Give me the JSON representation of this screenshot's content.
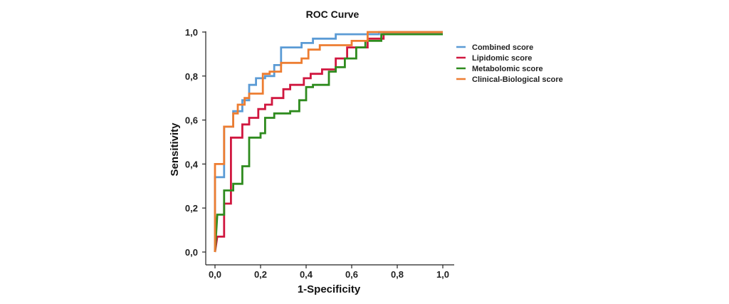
{
  "chart_data": {
    "type": "line",
    "title": "ROC Curve",
    "xlabel": "1-Specificity",
    "ylabel": "Sensitivity",
    "xlim": [
      0,
      1
    ],
    "ylim": [
      0,
      1
    ],
    "x_ticks": [
      "0,0",
      "0,2",
      "0,4",
      "0,6",
      "0,8",
      "1,0"
    ],
    "y_ticks": [
      "0,0",
      "0,2",
      "0,4",
      "0,6",
      "0,8",
      "1,0"
    ],
    "grid": false,
    "legend_position": "right",
    "series": [
      {
        "name": "Combined score",
        "color": "#5b9bd5",
        "points": [
          [
            0,
            0
          ],
          [
            0,
            0.34
          ],
          [
            0.04,
            0.34
          ],
          [
            0.04,
            0.57
          ],
          [
            0.08,
            0.57
          ],
          [
            0.08,
            0.64
          ],
          [
            0.12,
            0.64
          ],
          [
            0.12,
            0.69
          ],
          [
            0.15,
            0.69
          ],
          [
            0.15,
            0.76
          ],
          [
            0.18,
            0.76
          ],
          [
            0.18,
            0.79
          ],
          [
            0.22,
            0.79
          ],
          [
            0.22,
            0.8
          ],
          [
            0.26,
            0.8
          ],
          [
            0.26,
            0.85
          ],
          [
            0.29,
            0.85
          ],
          [
            0.29,
            0.93
          ],
          [
            0.38,
            0.93
          ],
          [
            0.38,
            0.95
          ],
          [
            0.43,
            0.95
          ],
          [
            0.43,
            0.97
          ],
          [
            0.53,
            0.97
          ],
          [
            0.53,
            0.99
          ],
          [
            0.72,
            0.99
          ],
          [
            0.72,
            1.0
          ],
          [
            1.0,
            1.0
          ]
        ]
      },
      {
        "name": "Lipidomic score",
        "color": "#d0173f",
        "points": [
          [
            0,
            0
          ],
          [
            0.01,
            0.07
          ],
          [
            0.04,
            0.07
          ],
          [
            0.04,
            0.22
          ],
          [
            0.07,
            0.22
          ],
          [
            0.07,
            0.52
          ],
          [
            0.12,
            0.52
          ],
          [
            0.12,
            0.58
          ],
          [
            0.15,
            0.58
          ],
          [
            0.15,
            0.61
          ],
          [
            0.19,
            0.61
          ],
          [
            0.19,
            0.65
          ],
          [
            0.22,
            0.65
          ],
          [
            0.22,
            0.67
          ],
          [
            0.25,
            0.67
          ],
          [
            0.25,
            0.7
          ],
          [
            0.3,
            0.7
          ],
          [
            0.3,
            0.74
          ],
          [
            0.33,
            0.74
          ],
          [
            0.33,
            0.76
          ],
          [
            0.39,
            0.76
          ],
          [
            0.39,
            0.79
          ],
          [
            0.42,
            0.79
          ],
          [
            0.42,
            0.81
          ],
          [
            0.47,
            0.81
          ],
          [
            0.47,
            0.83
          ],
          [
            0.53,
            0.83
          ],
          [
            0.53,
            0.88
          ],
          [
            0.58,
            0.88
          ],
          [
            0.58,
            0.93
          ],
          [
            0.67,
            0.93
          ],
          [
            0.67,
            0.97
          ],
          [
            0.74,
            0.97
          ],
          [
            0.74,
            0.99
          ],
          [
            1.0,
            0.99
          ]
        ]
      },
      {
        "name": "Metabolomic score",
        "color": "#2e8b1e",
        "points": [
          [
            0,
            0
          ],
          [
            0.01,
            0.17
          ],
          [
            0.04,
            0.17
          ],
          [
            0.04,
            0.28
          ],
          [
            0.08,
            0.28
          ],
          [
            0.08,
            0.31
          ],
          [
            0.12,
            0.31
          ],
          [
            0.12,
            0.39
          ],
          [
            0.15,
            0.39
          ],
          [
            0.15,
            0.52
          ],
          [
            0.2,
            0.52
          ],
          [
            0.2,
            0.54
          ],
          [
            0.22,
            0.54
          ],
          [
            0.22,
            0.61
          ],
          [
            0.26,
            0.61
          ],
          [
            0.26,
            0.63
          ],
          [
            0.33,
            0.63
          ],
          [
            0.33,
            0.64
          ],
          [
            0.37,
            0.64
          ],
          [
            0.37,
            0.69
          ],
          [
            0.4,
            0.69
          ],
          [
            0.4,
            0.75
          ],
          [
            0.43,
            0.75
          ],
          [
            0.43,
            0.76
          ],
          [
            0.5,
            0.76
          ],
          [
            0.5,
            0.82
          ],
          [
            0.53,
            0.82
          ],
          [
            0.53,
            0.84
          ],
          [
            0.57,
            0.84
          ],
          [
            0.57,
            0.88
          ],
          [
            0.62,
            0.88
          ],
          [
            0.62,
            0.93
          ],
          [
            0.66,
            0.93
          ],
          [
            0.66,
            0.96
          ],
          [
            0.73,
            0.96
          ],
          [
            0.73,
            0.99
          ],
          [
            1.0,
            0.99
          ]
        ]
      },
      {
        "name": "Clinical-Biological score",
        "color": "#ed7d31",
        "points": [
          [
            0,
            0
          ],
          [
            0,
            0.4
          ],
          [
            0.04,
            0.4
          ],
          [
            0.04,
            0.57
          ],
          [
            0.08,
            0.57
          ],
          [
            0.08,
            0.63
          ],
          [
            0.1,
            0.63
          ],
          [
            0.1,
            0.67
          ],
          [
            0.13,
            0.67
          ],
          [
            0.13,
            0.7
          ],
          [
            0.15,
            0.7
          ],
          [
            0.15,
            0.72
          ],
          [
            0.21,
            0.72
          ],
          [
            0.21,
            0.81
          ],
          [
            0.24,
            0.81
          ],
          [
            0.24,
            0.82
          ],
          [
            0.29,
            0.82
          ],
          [
            0.29,
            0.86
          ],
          [
            0.38,
            0.86
          ],
          [
            0.38,
            0.88
          ],
          [
            0.41,
            0.88
          ],
          [
            0.41,
            0.92
          ],
          [
            0.46,
            0.92
          ],
          [
            0.46,
            0.94
          ],
          [
            0.6,
            0.94
          ],
          [
            0.6,
            0.96
          ],
          [
            0.67,
            0.96
          ],
          [
            0.67,
            1.0
          ],
          [
            1.0,
            1.0
          ]
        ]
      }
    ]
  }
}
